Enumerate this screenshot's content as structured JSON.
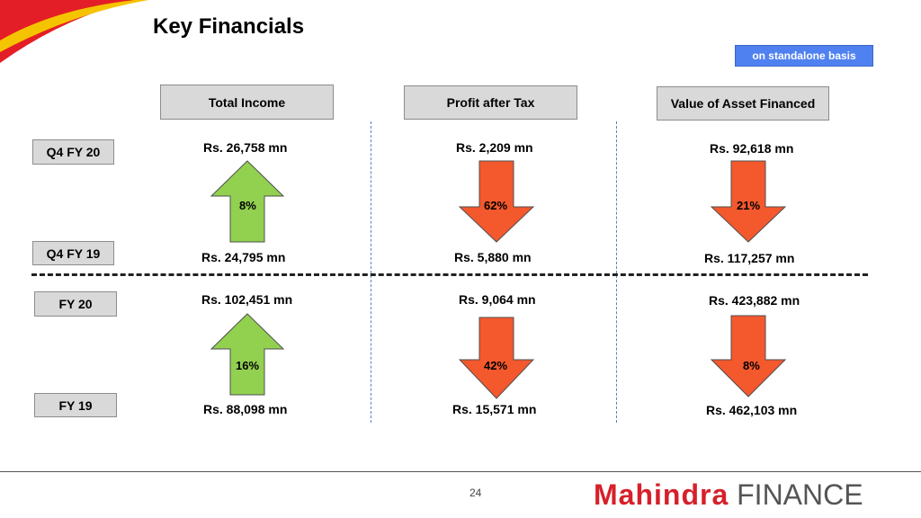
{
  "title": "Key Financials",
  "badge": "on standalone basis",
  "columns": [
    {
      "label": "Total Income"
    },
    {
      "label": "Profit after Tax"
    },
    {
      "label": "Value of Asset Financed"
    }
  ],
  "periods": {
    "q4fy20": "Q4 FY 20",
    "q4fy19": "Q4 FY 19",
    "fy20": "FY 20",
    "fy19": "FY 19"
  },
  "quarterly": {
    "total_income": {
      "current": "Rs. 26,758 mn",
      "previous": "Rs. 24,795 mn",
      "change": "8%",
      "direction": "up"
    },
    "pat": {
      "current": "Rs. 2,209 mn",
      "previous": "Rs. 5,880 mn",
      "change": "62%",
      "direction": "down"
    },
    "asset": {
      "current": "Rs. 92,618 mn",
      "previous": "Rs. 117,257 mn",
      "change": "21%",
      "direction": "down"
    }
  },
  "annual": {
    "total_income": {
      "current": "Rs. 102,451 mn",
      "previous": "Rs. 88,098 mn",
      "change": "16%",
      "direction": "up"
    },
    "pat": {
      "current": "Rs. 9,064 mn",
      "previous": "Rs. 15,571 mn",
      "change": "42%",
      "direction": "down"
    },
    "asset": {
      "current": "Rs. 423,882 mn",
      "previous": "Rs. 462,103 mn",
      "change": "8%",
      "direction": "down"
    }
  },
  "colors": {
    "up": "#92d050",
    "down": "#f4582d",
    "accent": "#d6202a",
    "badge": "#4f81f0"
  },
  "footer": {
    "page_number": "24",
    "logo_brand": "Mahindra",
    "logo_finance": "FINANCE"
  }
}
